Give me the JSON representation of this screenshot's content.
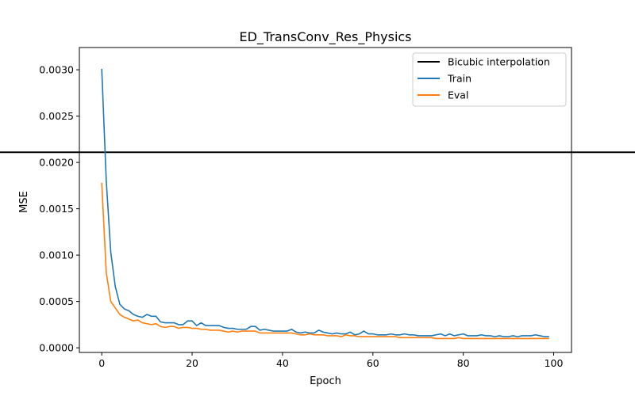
{
  "chart_data": {
    "type": "line",
    "title": "ED_TransConv_Res_Physics",
    "xlabel": "Epoch",
    "ylabel": "MSE",
    "xlim": [
      -4.95,
      103.95
    ],
    "ylim": [
      -5e-05,
      0.00324
    ],
    "xticks": [
      0,
      20,
      40,
      60,
      80,
      100
    ],
    "xtick_labels": [
      "0",
      "20",
      "40",
      "60",
      "80",
      "100"
    ],
    "yticks": [
      0,
      0.0005,
      0.001,
      0.0015,
      0.002,
      0.0025,
      0.003
    ],
    "ytick_labels": [
      "0.0000",
      "0.0005",
      "0.0010",
      "0.0015",
      "0.0020",
      "0.0025",
      "0.0030"
    ],
    "grid": false,
    "legend_position": "top-right",
    "hlines": [
      {
        "name": "Bicubic interpolation",
        "y": 0.00211,
        "color": "#000000"
      }
    ],
    "x": [
      0,
      1,
      2,
      3,
      4,
      5,
      6,
      7,
      8,
      9,
      10,
      11,
      12,
      13,
      14,
      15,
      16,
      17,
      18,
      19,
      20,
      21,
      22,
      23,
      24,
      25,
      26,
      27,
      28,
      29,
      30,
      31,
      32,
      33,
      34,
      35,
      36,
      37,
      38,
      39,
      40,
      41,
      42,
      43,
      44,
      45,
      46,
      47,
      48,
      49,
      50,
      51,
      52,
      53,
      54,
      55,
      56,
      57,
      58,
      59,
      60,
      61,
      62,
      63,
      64,
      65,
      66,
      67,
      68,
      69,
      70,
      71,
      72,
      73,
      74,
      75,
      76,
      77,
      78,
      79,
      80,
      81,
      82,
      83,
      84,
      85,
      86,
      87,
      88,
      89,
      90,
      91,
      92,
      93,
      94,
      95,
      96,
      97,
      98,
      99
    ],
    "series": [
      {
        "name": "Train",
        "color": "#1f77b4",
        "values": [
          0.00301,
          0.0018,
          0.00103,
          0.00066,
          0.00047,
          0.00042,
          0.0004,
          0.00036,
          0.00034,
          0.00033,
          0.00036,
          0.00034,
          0.00034,
          0.00028,
          0.00027,
          0.00027,
          0.00027,
          0.00025,
          0.00025,
          0.00029,
          0.00029,
          0.00024,
          0.00027,
          0.00024,
          0.00024,
          0.00024,
          0.00024,
          0.00022,
          0.00021,
          0.00021,
          0.0002,
          0.0002,
          0.0002,
          0.00023,
          0.00023,
          0.00019,
          0.0002,
          0.00019,
          0.00018,
          0.00018,
          0.00018,
          0.00018,
          0.0002,
          0.00017,
          0.00016,
          0.00017,
          0.00016,
          0.00016,
          0.00019,
          0.00017,
          0.00016,
          0.00015,
          0.00016,
          0.00015,
          0.00015,
          0.00017,
          0.00014,
          0.00015,
          0.00018,
          0.00015,
          0.00015,
          0.00014,
          0.00014,
          0.00014,
          0.00015,
          0.00014,
          0.00014,
          0.00015,
          0.00014,
          0.00014,
          0.00013,
          0.00013,
          0.00013,
          0.00013,
          0.00014,
          0.00015,
          0.00013,
          0.00015,
          0.00013,
          0.00014,
          0.00015,
          0.00013,
          0.00013,
          0.00013,
          0.00014,
          0.00013,
          0.00013,
          0.00012,
          0.00013,
          0.00012,
          0.00012,
          0.00013,
          0.00012,
          0.00013,
          0.00013,
          0.00013,
          0.00014,
          0.00013,
          0.00012,
          0.00012
        ]
      },
      {
        "name": "Eval",
        "color": "#ff7f0e",
        "values": [
          0.00178,
          0.00081,
          0.0005,
          0.00043,
          0.00036,
          0.00033,
          0.00031,
          0.00029,
          0.0003,
          0.00027,
          0.00026,
          0.00025,
          0.00026,
          0.00023,
          0.00022,
          0.00023,
          0.00023,
          0.00021,
          0.00022,
          0.00022,
          0.00021,
          0.00021,
          0.0002,
          0.0002,
          0.00019,
          0.00019,
          0.00019,
          0.00018,
          0.00017,
          0.00018,
          0.00017,
          0.00018,
          0.00018,
          0.00018,
          0.00018,
          0.00016,
          0.00016,
          0.00016,
          0.00016,
          0.00016,
          0.00016,
          0.00016,
          0.00016,
          0.00015,
          0.00014,
          0.00014,
          0.00015,
          0.00014,
          0.00014,
          0.00014,
          0.00013,
          0.00013,
          0.00013,
          0.00012,
          0.00014,
          0.00013,
          0.00013,
          0.00012,
          0.00012,
          0.00012,
          0.00012,
          0.00012,
          0.00012,
          0.00012,
          0.00012,
          0.00012,
          0.00011,
          0.00011,
          0.00011,
          0.00011,
          0.00011,
          0.00011,
          0.00011,
          0.00011,
          0.0001,
          0.0001,
          0.0001,
          0.0001,
          0.0001,
          0.00011,
          0.0001,
          0.0001,
          0.0001,
          0.0001,
          0.0001,
          0.0001,
          0.0001,
          0.0001,
          0.0001,
          0.0001,
          0.0001,
          0.0001,
          0.0001,
          0.0001,
          0.0001,
          0.0001,
          0.0001,
          0.0001,
          0.0001,
          0.0001
        ]
      }
    ]
  }
}
